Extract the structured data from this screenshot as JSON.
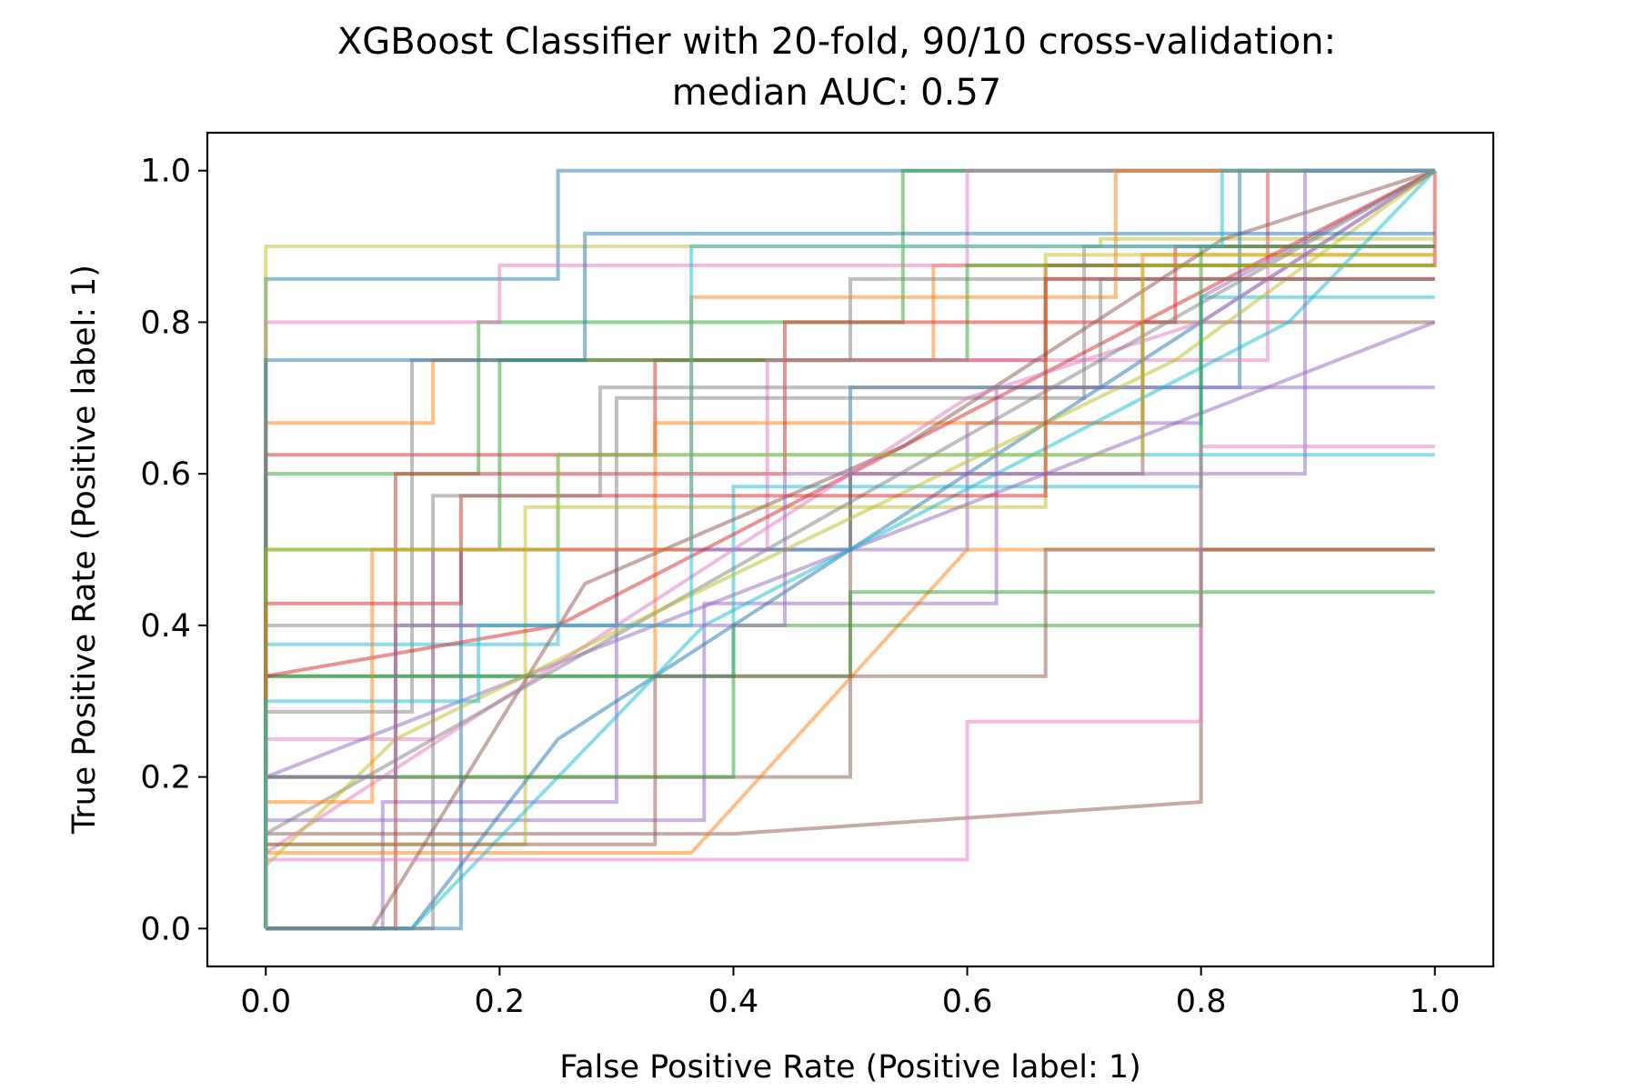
{
  "chart_data": {
    "type": "line",
    "title": "XGBoost Classifier with 20-fold, 90/10 cross-validation:",
    "subtitle": "median AUC: 0.57",
    "xlabel": "False Positive Rate (Positive label: 1)",
    "ylabel": "True Positive Rate (Positive label: 1)",
    "xlim": [
      -0.05,
      1.05
    ],
    "ylim": [
      -0.05,
      1.05
    ],
    "xticks": [
      "0.0",
      "0.2",
      "0.4",
      "0.6",
      "0.8",
      "1.0"
    ],
    "yticks": [
      "0.0",
      "0.2",
      "0.4",
      "0.6",
      "0.8",
      "1.0"
    ],
    "grid": false,
    "legend": "none",
    "series_opacity": 0.5,
    "palette": [
      "#1f77b4",
      "#ff7f0e",
      "#2ca02c",
      "#d62728",
      "#9467bd",
      "#8c564b",
      "#e377c2",
      "#7f7f7f",
      "#bcbd22",
      "#17becf"
    ],
    "series": [
      {
        "x": [
          0,
          0,
          0.25,
          0.25,
          0.5,
          0.5,
          1.0
        ],
        "y": [
          0,
          0.857,
          0.857,
          1.0,
          1.0,
          1.0,
          1.0
        ]
      },
      {
        "x": [
          0,
          0,
          0.143,
          0.143,
          0.571,
          0.571,
          0.857,
          0.857,
          1.0
        ],
        "y": [
          0,
          0.667,
          0.667,
          0.75,
          0.75,
          0.875,
          0.875,
          1.0,
          1.0
        ]
      },
      {
        "x": [
          0,
          0,
          0.182,
          0.182,
          0.545,
          0.545,
          1.0
        ],
        "y": [
          0,
          0.6,
          0.6,
          0.8,
          0.8,
          1.0,
          1.0
        ]
      },
      {
        "x": [
          0,
          0,
          0.333,
          0.333,
          0.667,
          0.667,
          1.0,
          1.0
        ],
        "y": [
          0,
          0.625,
          0.625,
          0.75,
          0.75,
          0.875,
          0.875,
          1.0
        ]
      },
      {
        "x": [
          0,
          0.1,
          0.1,
          0.3,
          0.3,
          0.6,
          0.6,
          0.8,
          0.8,
          1.0
        ],
        "y": [
          0,
          0.0,
          0.167,
          0.167,
          0.5,
          0.5,
          0.667,
          0.667,
          0.833,
          1.0
        ]
      },
      {
        "x": [
          0,
          0,
          0.4,
          0.8,
          0.8,
          1.0
        ],
        "y": [
          0,
          0.125,
          0.125,
          0.167,
          0.5,
          0.5
        ]
      },
      {
        "x": [
          0,
          0,
          0.2,
          0.2,
          0.6,
          0.6,
          1.0
        ],
        "y": [
          0,
          0.8,
          0.8,
          0.875,
          0.875,
          1.0,
          1.0
        ]
      },
      {
        "x": [
          0,
          0,
          0.125,
          0.125,
          0.5,
          0.5,
          1.0
        ],
        "y": [
          0,
          0.286,
          0.286,
          0.75,
          0.75,
          0.857,
          0.857
        ]
      },
      {
        "x": [
          0,
          0,
          0.286,
          0.286,
          0.714,
          0.714,
          1.0
        ],
        "y": [
          0,
          0.9,
          0.9,
          0.9,
          0.9,
          0.91,
          0.91
        ]
      },
      {
        "x": [
          0,
          0,
          0.25,
          0.25,
          0.625,
          0.625,
          1.0
        ],
        "y": [
          0,
          0.375,
          0.375,
          0.625,
          0.625,
          0.625,
          0.625
        ]
      },
      {
        "x": [
          0,
          0.167,
          0.167,
          0.5,
          0.5,
          0.833,
          0.833,
          1.0
        ],
        "y": [
          0,
          0.0,
          0.5,
          0.5,
          0.714,
          0.714,
          1.0,
          1.0
        ]
      },
      {
        "x": [
          0,
          0,
          0.333,
          0.333,
          0.75,
          0.75,
          1.0
        ],
        "y": [
          0,
          0.333,
          0.333,
          0.667,
          0.667,
          0.889,
          0.889
        ]
      },
      {
        "x": [
          0,
          0,
          0.2,
          0.2,
          0.6,
          0.6,
          1.0
        ],
        "y": [
          0,
          0.5,
          0.5,
          0.75,
          0.75,
          0.875,
          0.875
        ]
      },
      {
        "x": [
          0,
          0.111,
          0.111,
          0.444,
          0.444,
          0.778,
          0.778,
          1.0
        ],
        "y": [
          0,
          0.0,
          0.6,
          0.6,
          0.8,
          0.8,
          0.9,
          0.9
        ]
      },
      {
        "x": [
          0,
          0,
          0.375,
          0.375,
          0.625,
          0.625,
          1.0
        ],
        "y": [
          0,
          0.143,
          0.143,
          0.429,
          0.429,
          0.714,
          0.714
        ]
      },
      {
        "x": [
          0,
          0,
          0.5,
          0.5,
          0.75,
          0.75,
          1.0
        ],
        "y": [
          0,
          0.2,
          0.2,
          0.6,
          0.6,
          0.8,
          0.8
        ]
      },
      {
        "x": [
          0,
          0,
          0.143,
          0.143,
          0.429,
          0.429,
          0.857,
          0.857,
          1.0
        ],
        "y": [
          0,
          0.25,
          0.25,
          0.5,
          0.5,
          0.75,
          0.75,
          1.0,
          1.0
        ]
      },
      {
        "x": [
          0,
          0,
          0.3,
          0.3,
          0.7,
          0.7,
          1.0
        ],
        "y": [
          0,
          0.4,
          0.4,
          0.7,
          0.7,
          0.9,
          0.9
        ]
      },
      {
        "x": [
          0,
          0,
          0.222,
          0.222,
          0.667,
          0.667,
          1.0
        ],
        "y": [
          0,
          0.111,
          0.111,
          0.556,
          0.556,
          0.889,
          0.889
        ]
      },
      {
        "x": [
          0,
          0,
          0.4,
          0.4,
          0.8,
          0.8,
          1.0
        ],
        "y": [
          0,
          0.333,
          0.333,
          0.583,
          0.583,
          0.833,
          0.833
        ]
      },
      {
        "x": [
          0,
          0.125,
          0.25,
          0.5,
          0.75,
          0.875,
          1.0
        ],
        "y": [
          0,
          0.0,
          0.25,
          0.5,
          0.75,
          0.875,
          1.0
        ]
      },
      {
        "x": [
          0,
          0,
          0.364,
          0.6,
          0.6,
          1.0
        ],
        "y": [
          0,
          0.1,
          0.1,
          0.5,
          0.5,
          0.5
        ]
      },
      {
        "x": [
          0,
          0,
          0.5,
          0.5,
          1.0
        ],
        "y": [
          0,
          0.333,
          0.333,
          0.444,
          0.444
        ]
      },
      {
        "x": [
          0,
          0,
          0.25,
          0.5,
          0.75,
          1.0
        ],
        "y": [
          0,
          0.333,
          0.4,
          0.6,
          0.8,
          1.0
        ]
      },
      {
        "x": [
          0,
          0,
          0.333,
          0.667,
          1.0
        ],
        "y": [
          0,
          0.2,
          0.4,
          0.6,
          0.8
        ]
      },
      {
        "x": [
          0,
          0.091,
          0.273,
          0.545,
          0.818,
          1.0
        ],
        "y": [
          0,
          0.0,
          0.455,
          0.636,
          0.909,
          1.0
        ]
      },
      {
        "x": [
          0,
          0,
          0.2,
          0.4,
          0.6,
          0.8,
          1.0
        ],
        "y": [
          0,
          0.1,
          0.3,
          0.5,
          0.7,
          0.8,
          1.0
        ]
      },
      {
        "x": [
          0,
          0,
          0.143,
          0.286,
          0.571,
          0.857,
          1.0
        ],
        "y": [
          0,
          0.125,
          0.25,
          0.375,
          0.625,
          0.875,
          1.0
        ]
      },
      {
        "x": [
          0,
          0,
          0.111,
          0.333,
          0.556,
          0.778,
          1.0
        ],
        "y": [
          0,
          0.083,
          0.25,
          0.417,
          0.583,
          0.75,
          1.0
        ]
      },
      {
        "x": [
          0,
          0.125,
          0.25,
          0.375,
          0.625,
          0.875,
          1.0
        ],
        "y": [
          0,
          0.0,
          0.2,
          0.4,
          0.6,
          0.8,
          1.0
        ]
      },
      {
        "x": [
          0,
          0,
          0.273,
          0.273,
          0.727,
          0.727,
          1.0
        ],
        "y": [
          0,
          0.75,
          0.75,
          0.917,
          0.917,
          0.917,
          0.917
        ]
      },
      {
        "x": [
          0,
          0,
          0.091,
          0.091,
          0.364,
          0.364,
          0.727,
          0.727,
          1.0
        ],
        "y": [
          0,
          0.167,
          0.167,
          0.5,
          0.5,
          0.833,
          0.833,
          1.0,
          1.0
        ]
      },
      {
        "x": [
          0,
          0,
          0.4,
          0.4,
          0.8,
          0.8,
          1.0
        ],
        "y": [
          0,
          0.2,
          0.2,
          0.4,
          0.4,
          0.9,
          0.9
        ]
      },
      {
        "x": [
          0,
          0,
          0.167,
          0.167,
          0.667,
          0.667,
          1.0
        ],
        "y": [
          0,
          0.429,
          0.429,
          0.571,
          0.571,
          0.857,
          0.857
        ]
      },
      {
        "x": [
          0,
          0,
          0.111,
          0.111,
          0.444,
          0.444,
          0.889,
          0.889,
          1.0
        ],
        "y": [
          0,
          0.2,
          0.2,
          0.4,
          0.4,
          0.6,
          0.6,
          1.0,
          1.0
        ]
      },
      {
        "x": [
          0,
          0,
          0.333,
          0.333,
          0.667,
          0.667,
          1.0
        ],
        "y": [
          0,
          0.111,
          0.111,
          0.333,
          0.333,
          0.5,
          0.5
        ]
      },
      {
        "x": [
          0,
          0,
          0.6,
          0.6,
          0.8,
          0.8,
          1.0
        ],
        "y": [
          0,
          0.091,
          0.091,
          0.273,
          0.273,
          0.636,
          0.636
        ]
      },
      {
        "x": [
          0,
          0,
          0.143,
          0.143,
          0.286,
          0.286,
          0.714,
          0.714,
          1.0
        ],
        "y": [
          0,
          0.0,
          0.0,
          0.571,
          0.571,
          0.714,
          0.714,
          0.857,
          0.857
        ]
      },
      {
        "x": [
          0,
          0,
          0.25,
          0.25,
          0.75,
          0.75,
          1.0
        ],
        "y": [
          0,
          0.5,
          0.5,
          0.625,
          0.625,
          0.875,
          0.875
        ]
      },
      {
        "x": [
          0,
          0,
          0.182,
          0.182,
          0.364,
          0.364,
          0.818,
          0.818,
          1.0
        ],
        "y": [
          0,
          0.3,
          0.3,
          0.4,
          0.4,
          0.9,
          0.9,
          1.0,
          1.0
        ]
      }
    ]
  }
}
